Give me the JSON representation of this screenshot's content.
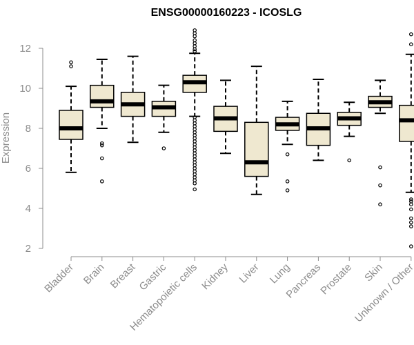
{
  "chart_data": {
    "type": "boxplot",
    "title": "ENSG00000160223 - ICOSLG",
    "ylabel": "Expression",
    "xlabel": "",
    "ylim": [
      2,
      13
    ],
    "yticks": [
      2,
      4,
      6,
      8,
      10,
      12
    ],
    "grid": false,
    "box_fill": "#efe8d0",
    "box_stroke": "#000000",
    "median_color": "#000000",
    "axis_color": "#8c8c8c",
    "categories": [
      "Bladder",
      "Brain",
      "Breast",
      "Gastric",
      "Hematopoietic cells",
      "Kidney",
      "Liver",
      "Lung",
      "Pancreas",
      "Prostate",
      "Skin",
      "Unknown / Other"
    ],
    "boxes": [
      {
        "category": "Bladder",
        "whisker_low": 5.8,
        "q1": 7.45,
        "median": 8.0,
        "q3": 8.9,
        "whisker_high": 10.1,
        "outliers": [
          11.1,
          11.3
        ]
      },
      {
        "category": "Brain",
        "whisker_low": 8.0,
        "q1": 9.05,
        "median": 9.35,
        "q3": 10.15,
        "whisker_high": 11.45,
        "outliers": [
          7.25,
          7.15,
          6.5,
          5.35
        ]
      },
      {
        "category": "Breast",
        "whisker_low": 7.3,
        "q1": 8.6,
        "median": 9.2,
        "q3": 9.8,
        "whisker_high": 11.6,
        "outliers": []
      },
      {
        "category": "Gastric",
        "whisker_low": 7.8,
        "q1": 8.6,
        "median": 9.05,
        "q3": 9.35,
        "whisker_high": 10.15,
        "outliers": [
          7.0
        ]
      },
      {
        "category": "Hematopoietic cells",
        "whisker_low": 8.6,
        "q1": 9.8,
        "median": 10.3,
        "q3": 10.65,
        "whisker_high": 11.75,
        "outliers": [
          12.9,
          12.75,
          12.6,
          12.4,
          12.25,
          12.1,
          11.95,
          11.85,
          8.55,
          8.4,
          8.25,
          8.1,
          7.95,
          7.8,
          7.65,
          7.5,
          7.35,
          7.2,
          7.05,
          6.9,
          6.75,
          6.6,
          6.45,
          6.3,
          6.15,
          6.0,
          5.85,
          5.7,
          5.55,
          5.4,
          5.25,
          4.95
        ]
      },
      {
        "category": "Kidney",
        "whisker_low": 6.75,
        "q1": 7.85,
        "median": 8.5,
        "q3": 9.1,
        "whisker_high": 10.4,
        "outliers": []
      },
      {
        "category": "Liver",
        "whisker_low": 4.7,
        "q1": 5.6,
        "median": 6.3,
        "q3": 8.3,
        "whisker_high": 11.1,
        "outliers": []
      },
      {
        "category": "Lung",
        "whisker_low": 7.2,
        "q1": 7.9,
        "median": 8.2,
        "q3": 8.55,
        "whisker_high": 9.35,
        "outliers": [
          6.7,
          5.35,
          4.9
        ]
      },
      {
        "category": "Pancreas",
        "whisker_low": 6.4,
        "q1": 7.15,
        "median": 8.0,
        "q3": 8.75,
        "whisker_high": 10.45,
        "outliers": []
      },
      {
        "category": "Prostate",
        "whisker_low": 7.6,
        "q1": 8.15,
        "median": 8.5,
        "q3": 8.8,
        "whisker_high": 9.3,
        "outliers": [
          6.4
        ]
      },
      {
        "category": "Skin",
        "whisker_low": 8.75,
        "q1": 9.05,
        "median": 9.3,
        "q3": 9.6,
        "whisker_high": 10.4,
        "outliers": [
          6.05,
          5.15,
          4.2
        ]
      },
      {
        "category": "Unknown / Other",
        "whisker_low": 4.8,
        "q1": 7.35,
        "median": 8.4,
        "q3": 9.15,
        "whisker_high": 11.7,
        "outliers": [
          12.7,
          12.2,
          4.45,
          4.35,
          4.2,
          3.95,
          3.5,
          3.3,
          3.1,
          2.1
        ]
      }
    ]
  }
}
